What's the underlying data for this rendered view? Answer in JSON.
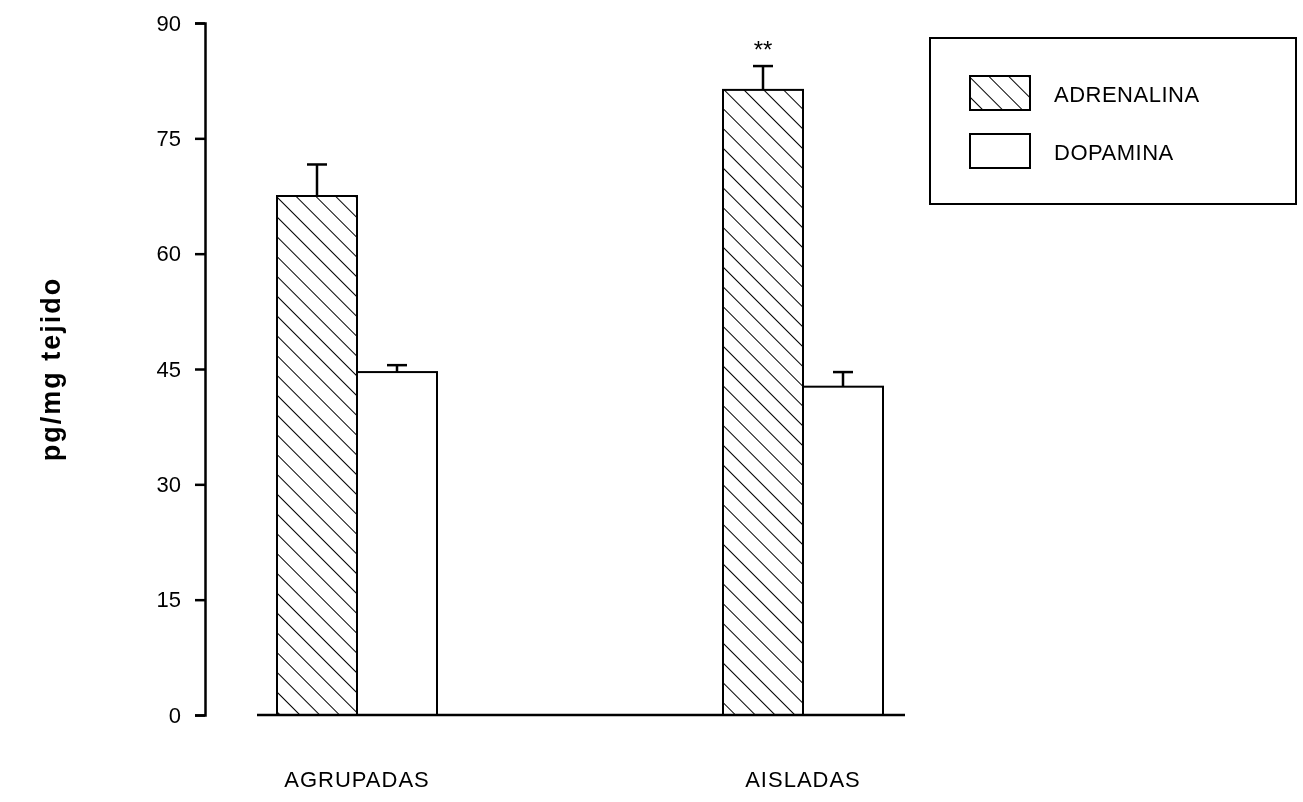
{
  "chart_data": {
    "type": "bar",
    "ylabel": "pg/mg tejido",
    "categories": [
      "AGRUPADAS",
      "AISLADAS"
    ],
    "series": [
      {
        "name": "ADRENALINA",
        "color": "#000000",
        "values": [
          67.5,
          81.3
        ],
        "errors": [
          [
            67.5,
            71.6
          ],
          [
            81.3,
            84.4
          ]
        ]
      },
      {
        "name": "DOPAMINA",
        "color": "#ffffff",
        "values": [
          44.6,
          42.7
        ],
        "errors": [
          [
            44.6,
            45.5
          ],
          [
            42.7,
            44.6
          ]
        ]
      }
    ],
    "ylim": [
      0,
      90
    ],
    "yticks": [
      0,
      15,
      30,
      45,
      60,
      75,
      90
    ],
    "legend": "top right",
    "annotations": [
      "**"
    ]
  }
}
